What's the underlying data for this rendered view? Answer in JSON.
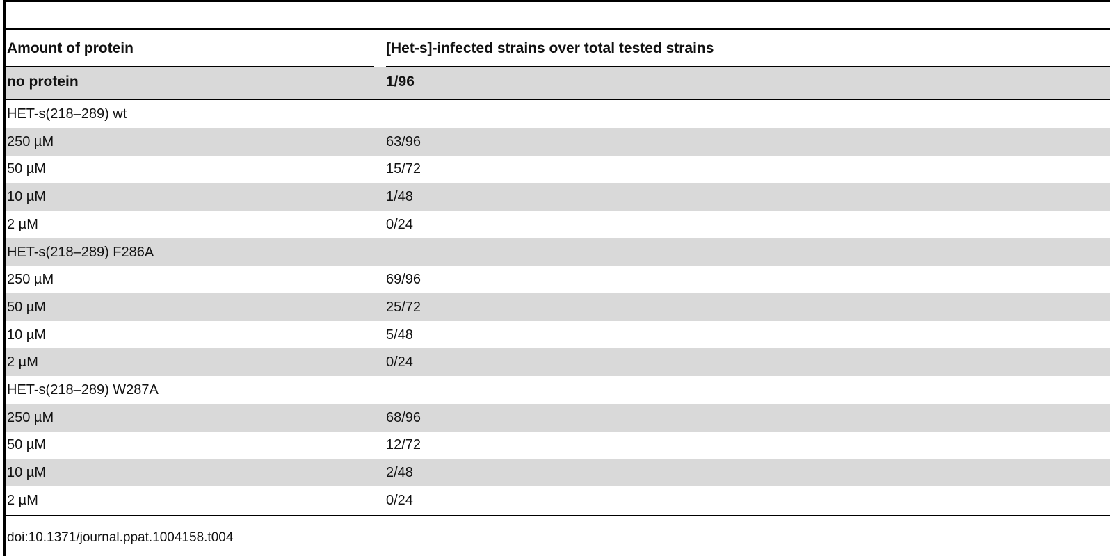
{
  "table": {
    "headers": {
      "col1": "Amount of protein",
      "col2": "[Het-s]-infected strains over total tested strains"
    },
    "rows": [
      {
        "c1": "no protein",
        "c2": "1/96",
        "shaded": true,
        "bold": true
      },
      {
        "c1": "HET-s(218–289) wt",
        "c2": "",
        "shaded": false,
        "bold": false
      },
      {
        "c1": "250 µM",
        "c2": "63/96",
        "shaded": true,
        "bold": false
      },
      {
        "c1": "50 µM",
        "c2": "15/72",
        "shaded": false,
        "bold": false
      },
      {
        "c1": "10 µM",
        "c2": "1/48",
        "shaded": true,
        "bold": false
      },
      {
        "c1": "2 µM",
        "c2": "0/24",
        "shaded": false,
        "bold": false
      },
      {
        "c1": "HET-s(218–289) F286A",
        "c2": "",
        "shaded": true,
        "bold": false
      },
      {
        "c1": "250 µM",
        "c2": "69/96",
        "shaded": false,
        "bold": false
      },
      {
        "c1": "50 µM",
        "c2": "25/72",
        "shaded": true,
        "bold": false
      },
      {
        "c1": "10 µM",
        "c2": "5/48",
        "shaded": false,
        "bold": false
      },
      {
        "c1": "2 µM",
        "c2": "0/24",
        "shaded": true,
        "bold": false
      },
      {
        "c1": "HET-s(218–289) W287A",
        "c2": "",
        "shaded": false,
        "bold": false
      },
      {
        "c1": "250 µM",
        "c2": "68/96",
        "shaded": true,
        "bold": false
      },
      {
        "c1": "50 µM",
        "c2": "12/72",
        "shaded": false,
        "bold": false
      },
      {
        "c1": "10 µM",
        "c2": "2/48",
        "shaded": true,
        "bold": false
      },
      {
        "c1": "2 µM",
        "c2": "0/24",
        "shaded": false,
        "bold": false
      }
    ]
  },
  "footer": {
    "doi": "doi:10.1371/journal.ppat.1004158.t004"
  },
  "colors": {
    "shade": "#d9d9d9",
    "rule": "#000000"
  }
}
